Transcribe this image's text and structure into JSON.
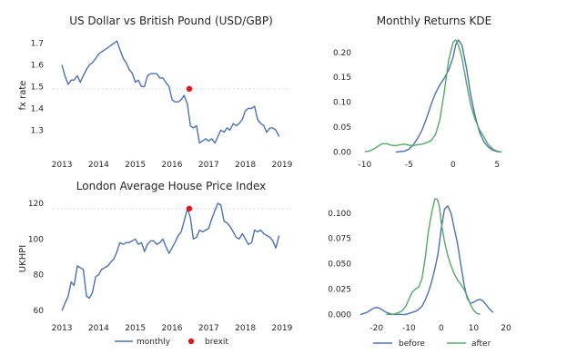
{
  "colors": {
    "blue": "#4c72b0",
    "green": "#55a868",
    "red": "#e0161c",
    "ref": "#cccccc"
  },
  "legend_left": {
    "series_label": "monthly",
    "marker_label": "brexit"
  },
  "legend_right": {
    "before_label": "before",
    "after_label": "after"
  },
  "chart_data": [
    {
      "type": "line",
      "title": "US Dollar vs British Pound (USD/GBP)",
      "xlabel": "",
      "ylabel": "fx rate",
      "xlim": [
        2012.75,
        2019.25
      ],
      "ylim": [
        1.18,
        1.74
      ],
      "xticks": [
        2013,
        2014,
        2015,
        2016,
        2017,
        2018,
        2019
      ],
      "yticks": [
        1.3,
        1.4,
        1.5,
        1.6,
        1.7
      ],
      "reference_y": 1.49,
      "series": [
        {
          "name": "monthly",
          "x": [
            2013.0,
            2013.08,
            2013.17,
            2013.25,
            2013.33,
            2013.42,
            2013.5,
            2013.58,
            2013.67,
            2013.75,
            2013.83,
            2013.92,
            2014.0,
            2014.08,
            2014.17,
            2014.25,
            2014.33,
            2014.42,
            2014.5,
            2014.58,
            2014.67,
            2014.75,
            2014.83,
            2014.92,
            2015.0,
            2015.08,
            2015.17,
            2015.25,
            2015.33,
            2015.42,
            2015.5,
            2015.58,
            2015.67,
            2015.75,
            2015.83,
            2015.92,
            2016.0,
            2016.08,
            2016.17,
            2016.25,
            2016.33,
            2016.42,
            2016.5,
            2016.58,
            2016.67,
            2016.75,
            2016.83,
            2016.92,
            2017.0,
            2017.08,
            2017.17,
            2017.25,
            2017.33,
            2017.42,
            2017.5,
            2017.58,
            2017.67,
            2017.75,
            2017.83,
            2017.92,
            2018.0,
            2018.08,
            2018.17,
            2018.25,
            2018.33,
            2018.42,
            2018.5,
            2018.58,
            2018.67,
            2018.75,
            2018.83,
            2018.92
          ],
          "y": [
            1.6,
            1.55,
            1.51,
            1.53,
            1.53,
            1.55,
            1.52,
            1.55,
            1.58,
            1.6,
            1.61,
            1.63,
            1.65,
            1.66,
            1.67,
            1.68,
            1.69,
            1.7,
            1.71,
            1.67,
            1.63,
            1.61,
            1.58,
            1.56,
            1.52,
            1.53,
            1.5,
            1.5,
            1.55,
            1.56,
            1.56,
            1.56,
            1.54,
            1.54,
            1.52,
            1.5,
            1.44,
            1.43,
            1.43,
            1.44,
            1.46,
            1.42,
            1.32,
            1.31,
            1.32,
            1.24,
            1.25,
            1.26,
            1.25,
            1.26,
            1.24,
            1.27,
            1.3,
            1.29,
            1.31,
            1.3,
            1.33,
            1.32,
            1.33,
            1.35,
            1.39,
            1.4,
            1.4,
            1.41,
            1.35,
            1.33,
            1.32,
            1.29,
            1.31,
            1.31,
            1.3,
            1.27
          ]
        }
      ],
      "marker": {
        "name": "brexit",
        "x": 2016.47,
        "y": 1.49
      }
    },
    {
      "type": "line",
      "title": "Monthly Returns KDE",
      "xlabel": "",
      "ylabel": "",
      "xlim": [
        -10.5,
        6
      ],
      "ylim": [
        -0.008,
        0.236
      ],
      "xticks": [
        -10,
        -5,
        0,
        5
      ],
      "yticks": [
        0.0,
        0.05,
        0.1,
        0.15,
        0.2
      ],
      "series": [
        {
          "name": "",
          "color": "#4c72b0",
          "x": [
            -6.5,
            -5.5,
            -5,
            -4.5,
            -4,
            -3.5,
            -3,
            -2.5,
            -2,
            -1.5,
            -1,
            -0.5,
            0,
            0.3,
            0.6,
            1,
            1.5,
            2,
            2.5,
            3,
            3.5,
            4,
            4.5,
            5,
            5.5
          ],
          "y": [
            0.0,
            0.002,
            0.006,
            0.015,
            0.028,
            0.045,
            0.068,
            0.095,
            0.118,
            0.135,
            0.148,
            0.165,
            0.19,
            0.215,
            0.225,
            0.215,
            0.17,
            0.115,
            0.072,
            0.04,
            0.02,
            0.01,
            0.004,
            0.001,
            0.0
          ]
        },
        {
          "name": "",
          "color": "#55a868",
          "x": [
            -10,
            -9.5,
            -9,
            -8.5,
            -8,
            -7.5,
            -7,
            -6.5,
            -6,
            -5.5,
            -5,
            -4.5,
            -4,
            -3.5,
            -3,
            -2.5,
            -2,
            -1.5,
            -1,
            -0.5,
            0,
            0.3,
            0.6,
            1,
            1.5,
            2,
            2.5,
            3,
            3.5,
            4,
            4.5,
            5,
            5.5
          ],
          "y": [
            0.001,
            0.002,
            0.006,
            0.012,
            0.017,
            0.017,
            0.014,
            0.013,
            0.015,
            0.016,
            0.014,
            0.013,
            0.015,
            0.016,
            0.019,
            0.023,
            0.035,
            0.065,
            0.12,
            0.185,
            0.22,
            0.225,
            0.215,
            0.19,
            0.14,
            0.095,
            0.065,
            0.045,
            0.03,
            0.015,
            0.006,
            0.002,
            0.0
          ]
        }
      ]
    },
    {
      "type": "line",
      "title": "London Average House Price Index",
      "xlabel": "",
      "ylabel": "UKHPI",
      "xlim": [
        2012.75,
        2019.25
      ],
      "ylim": [
        55,
        123
      ],
      "xticks": [
        2013,
        2014,
        2015,
        2016,
        2017,
        2018,
        2019
      ],
      "yticks": [
        60,
        80,
        100,
        120
      ],
      "reference_y": 117,
      "series": [
        {
          "name": "monthly",
          "x": [
            2013.0,
            2013.08,
            2013.17,
            2013.25,
            2013.33,
            2013.42,
            2013.5,
            2013.58,
            2013.67,
            2013.75,
            2013.83,
            2013.92,
            2014.0,
            2014.08,
            2014.17,
            2014.25,
            2014.33,
            2014.42,
            2014.5,
            2014.58,
            2014.67,
            2014.75,
            2014.83,
            2014.92,
            2015.0,
            2015.08,
            2015.17,
            2015.25,
            2015.33,
            2015.42,
            2015.5,
            2015.58,
            2015.67,
            2015.75,
            2015.83,
            2015.92,
            2016.0,
            2016.08,
            2016.17,
            2016.25,
            2016.33,
            2016.42,
            2016.5,
            2016.58,
            2016.67,
            2016.75,
            2016.83,
            2016.92,
            2017.0,
            2017.08,
            2017.17,
            2017.25,
            2017.33,
            2017.42,
            2017.5,
            2017.58,
            2017.67,
            2017.75,
            2017.83,
            2017.92,
            2018.0,
            2018.08,
            2018.17,
            2018.25,
            2018.33,
            2018.42,
            2018.5,
            2018.58,
            2018.67,
            2018.75,
            2018.83,
            2018.92
          ],
          "y": [
            60,
            64,
            68,
            76,
            74,
            85,
            84,
            83,
            68,
            67,
            70,
            79,
            80,
            83,
            84,
            85,
            87,
            89,
            93,
            98,
            97,
            98,
            98,
            99,
            100,
            97,
            98,
            93,
            97,
            99,
            99,
            97,
            98,
            100,
            96,
            92,
            95,
            98,
            102,
            104,
            110,
            117,
            112,
            100,
            101,
            105,
            104,
            105,
            106,
            111,
            116,
            120,
            119,
            110,
            109,
            107,
            104,
            101,
            100,
            103,
            100,
            97,
            98,
            105,
            104,
            105,
            103,
            102,
            101,
            99,
            95,
            102
          ]
        }
      ],
      "marker": {
        "name": "brexit",
        "x": 2016.47,
        "y": 117
      }
    },
    {
      "type": "line",
      "title": "",
      "xlabel": "",
      "ylabel": "",
      "xlim": [
        -25,
        20
      ],
      "ylim": [
        -0.005,
        0.115
      ],
      "xticks": [
        -20,
        -10,
        0,
        10,
        20
      ],
      "yticks": [
        0.0,
        0.025,
        0.05,
        0.075,
        0.1
      ],
      "series": [
        {
          "name": "before",
          "color": "#4c72b0",
          "x": [
            -25,
            -24,
            -23,
            -22,
            -21,
            -20,
            -19,
            -18,
            -17,
            -16,
            -15,
            -14,
            -13,
            -12,
            -11,
            -10,
            -9,
            -8,
            -7,
            -6,
            -5,
            -4,
            -3,
            -2,
            -1,
            0,
            1,
            2,
            3,
            4,
            5,
            6,
            7,
            8,
            9,
            10,
            11,
            12,
            13,
            14,
            15,
            16
          ],
          "y": [
            0.0,
            0.001,
            0.002,
            0.004,
            0.006,
            0.007,
            0.006,
            0.004,
            0.002,
            0.001,
            0.0,
            0.0,
            0.0,
            0.0,
            0.0,
            0.001,
            0.002,
            0.003,
            0.005,
            0.008,
            0.014,
            0.022,
            0.032,
            0.045,
            0.06,
            0.085,
            0.104,
            0.107,
            0.1,
            0.085,
            0.07,
            0.05,
            0.03,
            0.016,
            0.011,
            0.012,
            0.014,
            0.015,
            0.013,
            0.009,
            0.005,
            0.002
          ]
        },
        {
          "name": "after",
          "color": "#55a868",
          "x": [
            -17,
            -15,
            -14,
            -13,
            -12,
            -11,
            -10,
            -9,
            -8,
            -7,
            -6,
            -5,
            -4,
            -3,
            -2,
            -1.5,
            -1,
            -0.5,
            0,
            1,
            2,
            3,
            4,
            5,
            6,
            7,
            8,
            9,
            10,
            11,
            12
          ],
          "y": [
            0.0,
            0.0,
            0.001,
            0.002,
            0.004,
            0.008,
            0.015,
            0.022,
            0.025,
            0.027,
            0.035,
            0.055,
            0.082,
            0.1,
            0.114,
            0.114,
            0.112,
            0.105,
            0.09,
            0.072,
            0.058,
            0.048,
            0.04,
            0.034,
            0.03,
            0.025,
            0.018,
            0.01,
            0.004,
            0.001,
            0.0
          ]
        }
      ]
    }
  ]
}
